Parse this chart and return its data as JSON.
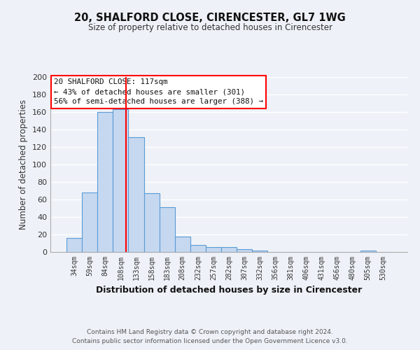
{
  "title": "20, SHALFORD CLOSE, CIRENCESTER, GL7 1WG",
  "subtitle": "Size of property relative to detached houses in Cirencester",
  "xlabel": "Distribution of detached houses by size in Cirencester",
  "ylabel": "Number of detached properties",
  "bar_color": "#c5d8f0",
  "bar_edge_color": "#5b9bd5",
  "background_color": "#eef2f8",
  "grid_color": "#ffffff",
  "bin_labels": [
    "34sqm",
    "59sqm",
    "84sqm",
    "108sqm",
    "133sqm",
    "158sqm",
    "183sqm",
    "208sqm",
    "232sqm",
    "257sqm",
    "282sqm",
    "307sqm",
    "332sqm",
    "356sqm",
    "381sqm",
    "406sqm",
    "431sqm",
    "456sqm",
    "480sqm",
    "505sqm",
    "530sqm"
  ],
  "bar_heights": [
    16,
    68,
    160,
    163,
    131,
    67,
    51,
    18,
    8,
    6,
    6,
    3,
    2,
    0,
    0,
    0,
    0,
    0,
    0,
    2,
    0
  ],
  "ylim": [
    0,
    200
  ],
  "yticks": [
    0,
    20,
    40,
    60,
    80,
    100,
    120,
    140,
    160,
    180,
    200
  ],
  "annotation_title": "20 SHALFORD CLOSE: 117sqm",
  "annotation_line1": "← 43% of detached houses are smaller (301)",
  "annotation_line2": "56% of semi-detached houses are larger (388) →",
  "footer_line1": "Contains HM Land Registry data © Crown copyright and database right 2024.",
  "footer_line2": "Contains public sector information licensed under the Open Government Licence v3.0.",
  "red_line_x": 3.36
}
